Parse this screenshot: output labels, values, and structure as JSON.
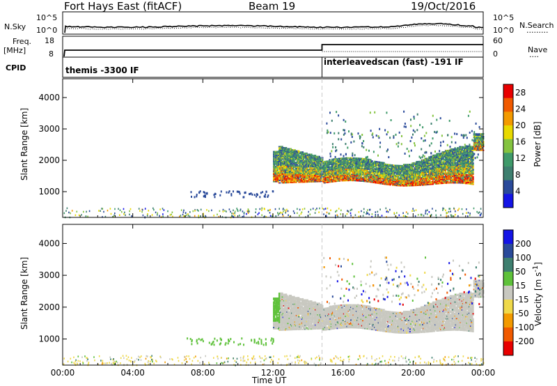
{
  "header": {
    "radar": "Fort Hays East (fitACF)",
    "beam": "Beam 19",
    "date": "19/Oct/2016"
  },
  "left_labels": {
    "nsky": "N.Sky",
    "freq_a": "Freq.",
    "freq_b": "[MHz]",
    "cpid": "CPID"
  },
  "right_labels": {
    "nsearch": "N.Search",
    "nsearch_dots": "·········",
    "nave": "Nave",
    "nave_dots": "····"
  },
  "noise_axis_left": [
    "10^5",
    "10^0"
  ],
  "noise_axis_right": [
    "10^5",
    "10^0"
  ],
  "freq_axis_left": [
    "18",
    "8"
  ],
  "freq_axis_right": [
    "60",
    "0"
  ],
  "cpid_modes": [
    {
      "label": "themis -3300 IF",
      "start_hour": 0
    },
    {
      "label": "interleavedscan (fast) -191 IF",
      "start_hour": 14.8
    }
  ],
  "colors": {
    "power_scale": [
      "#1414e6",
      "#2a4a9a",
      "#3e7f6f",
      "#3f9a6a",
      "#84c33f",
      "#e8d900",
      "#f39a00",
      "#f15a00",
      "#e80000"
    ],
    "velocity_scale": [
      "#1414e6",
      "#2a4a9a",
      "#3e7f6f",
      "#5ec13a",
      "#c8c8c0",
      "#efd94a",
      "#f39a00",
      "#f15a00",
      "#e80000"
    ]
  },
  "chart_data": [
    {
      "type": "heatmap",
      "title": "Power",
      "xlabel": "",
      "ylabel": "Slant Range [km]",
      "x_ticks": [
        "00:00",
        "04:00",
        "08:00",
        "12:00",
        "16:00",
        "20:00",
        "00:00"
      ],
      "xlim_hours": [
        0,
        24
      ],
      "y_ticks": [
        1000,
        2000,
        3000,
        4000
      ],
      "ylim": [
        180,
        4600
      ],
      "colorbar_label": "Power [dB]",
      "colorbar_ticks": [
        4,
        8,
        12,
        16,
        20,
        24,
        28
      ],
      "colorbar_range": [
        0,
        30
      ],
      "description_bands": [
        {
          "hours": [
            12.0,
            14.8
          ],
          "range_low": 1250,
          "range_high": 2500
        },
        {
          "hours": [
            14.8,
            23.4
          ],
          "range_low": 1200,
          "range_high": 2300
        },
        {
          "hours": [
            23.4,
            24.0
          ],
          "range_low": 2300,
          "range_high": 2800
        }
      ]
    },
    {
      "type": "heatmap",
      "title": "Velocity",
      "xlabel": "Time UT",
      "ylabel": "Slant Range [km]",
      "x_ticks": [
        "00:00",
        "04:00",
        "08:00",
        "12:00",
        "16:00",
        "20:00",
        "00:00"
      ],
      "xlim_hours": [
        0,
        24
      ],
      "y_ticks": [
        1000,
        2000,
        3000,
        4000
      ],
      "ylim": [
        180,
        4600
      ],
      "colorbar_label": "Velocity [m s^-1]",
      "colorbar_ticks": [
        200,
        100,
        50,
        15,
        -15,
        -50,
        -100,
        -200
      ]
    }
  ]
}
